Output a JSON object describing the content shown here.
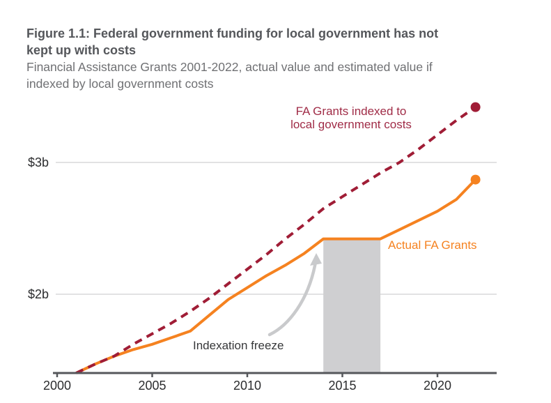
{
  "figure": {
    "title_lines": [
      "Figure 1.1: Federal government funding for local government has not",
      "kept up with costs"
    ],
    "subtitle_lines": [
      "Financial Assistance Grants 2001-2022, actual value and estimated value if",
      "indexed by local government costs"
    ]
  },
  "chart_data": {
    "type": "line",
    "unit": "$b",
    "x": [
      2001,
      2002,
      2003,
      2004,
      2005,
      2006,
      2007,
      2008,
      2009,
      2010,
      2011,
      2012,
      2013,
      2014,
      2015,
      2016,
      2017,
      2018,
      2019,
      2020,
      2021,
      2022
    ],
    "series": [
      {
        "name": "FA Grants indexed to local government costs",
        "label_lines": [
          "FA Grants indexed to",
          "local government costs"
        ],
        "style": "dashed",
        "color": "#A01D36",
        "values": [
          1.4,
          1.47,
          1.53,
          1.62,
          1.7,
          1.78,
          1.87,
          1.97,
          2.08,
          2.19,
          2.3,
          2.42,
          2.53,
          2.65,
          2.74,
          2.83,
          2.92,
          3.0,
          3.1,
          3.21,
          3.32,
          3.42
        ]
      },
      {
        "name": "Actual FA Grants",
        "label": "Actual FA Grants",
        "style": "solid",
        "color": "#F58220",
        "values": [
          1.4,
          1.47,
          1.53,
          1.58,
          1.62,
          1.67,
          1.72,
          1.84,
          1.96,
          2.05,
          2.14,
          2.22,
          2.31,
          2.42,
          2.42,
          2.42,
          2.42,
          2.49,
          2.56,
          2.63,
          2.72,
          2.87
        ]
      }
    ],
    "yticks": [
      {
        "label": "$3b",
        "value": 3
      },
      {
        "label": "$2b",
        "value": 2
      }
    ],
    "xticks": [
      2000,
      2005,
      2010,
      2015,
      2020
    ],
    "xlim": [
      2000,
      2023
    ],
    "ylim_bottom_value": 1.4,
    "grid": "horizontal",
    "legend_position": "inline-labels",
    "annotations": {
      "freeze_label": "Indexation freeze",
      "freeze_band": {
        "from": 2014,
        "to": 2017
      }
    }
  },
  "colors": {
    "indexed_line": "#A01D36",
    "actual_line": "#F58220",
    "gridline": "#D8D8DA",
    "axis": "#55575B",
    "freeze_band": "#CFCFD1",
    "arrow": "#C9CACC"
  }
}
